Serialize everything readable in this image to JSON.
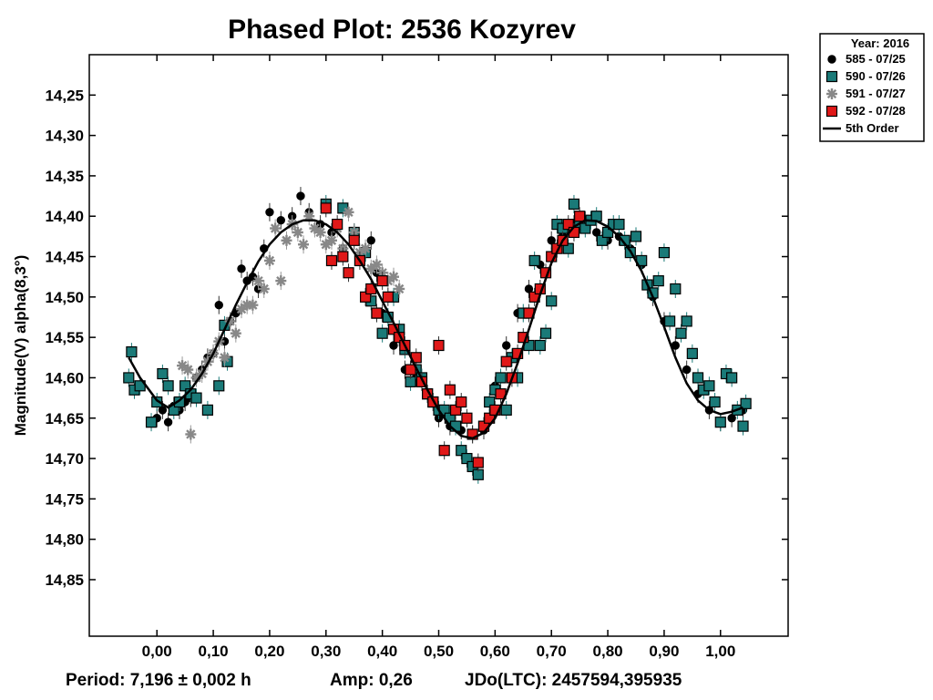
{
  "chart_data": {
    "type": "scatter",
    "title": "Phased Plot: 2536 Kozyrev",
    "xlabel": "",
    "ylabel": "Magnitude(V) alpha(8,3°)",
    "xlim": [
      -0.12,
      1.12
    ],
    "ylim": [
      14.2,
      14.92
    ],
    "y_inverted": true,
    "xticks": [
      0.0,
      0.1,
      0.2,
      0.3,
      0.4,
      0.5,
      0.6,
      0.7,
      0.8,
      0.9,
      1.0
    ],
    "xtick_labels": [
      "0,00",
      "0,10",
      "0,20",
      "0,30",
      "0,40",
      "0,50",
      "0,60",
      "0,70",
      "0,80",
      "0,90",
      "1,00"
    ],
    "yticks": [
      14.25,
      14.3,
      14.35,
      14.4,
      14.45,
      14.5,
      14.55,
      14.6,
      14.65,
      14.7,
      14.75,
      14.8,
      14.85
    ],
    "ytick_labels": [
      "14,25",
      "14,30",
      "14,35",
      "14,40",
      "14,45",
      "14,50",
      "14,55",
      "14,60",
      "14,65",
      "14,70",
      "14,75",
      "14,80",
      "14,85"
    ],
    "legend": {
      "title": "Year: 2016",
      "position": "top-right-outside",
      "entries": [
        "585 - 07/25",
        "590 - 07/26",
        "591 - 07/27",
        "592 - 07/28",
        "5th Order"
      ]
    },
    "footer": {
      "period": "Period: 7,196 ± 0,002 h",
      "amplitude": "Amp: 0,26",
      "jdo": "JDo(LTC): 2457594,395935"
    },
    "fit_curve": {
      "name": "5th Order",
      "x": [
        -0.05,
        -0.03,
        0.0,
        0.02,
        0.04,
        0.06,
        0.08,
        0.1,
        0.12,
        0.14,
        0.16,
        0.18,
        0.2,
        0.22,
        0.24,
        0.26,
        0.28,
        0.3,
        0.32,
        0.34,
        0.36,
        0.38,
        0.4,
        0.42,
        0.44,
        0.46,
        0.48,
        0.5,
        0.52,
        0.54,
        0.56,
        0.58,
        0.6,
        0.62,
        0.64,
        0.66,
        0.68,
        0.7,
        0.72,
        0.74,
        0.76,
        0.78,
        0.8,
        0.82,
        0.84,
        0.86,
        0.88,
        0.9,
        0.92,
        0.94,
        0.96,
        0.98,
        1.0,
        1.02,
        1.04
      ],
      "y": [
        14.575,
        14.6,
        14.628,
        14.637,
        14.628,
        14.615,
        14.595,
        14.57,
        14.54,
        14.51,
        14.482,
        14.456,
        14.435,
        14.42,
        14.41,
        14.405,
        14.405,
        14.41,
        14.42,
        14.435,
        14.455,
        14.478,
        14.505,
        14.532,
        14.56,
        14.588,
        14.615,
        14.64,
        14.66,
        14.672,
        14.675,
        14.668,
        14.65,
        14.62,
        14.582,
        14.54,
        14.497,
        14.458,
        14.43,
        14.413,
        14.405,
        14.406,
        14.413,
        14.425,
        14.443,
        14.468,
        14.5,
        14.537,
        14.575,
        14.607,
        14.628,
        14.64,
        14.645,
        14.642,
        14.637
      ]
    },
    "series": [
      {
        "name": "585 - 07/25",
        "marker": "circle",
        "color": "#000000",
        "x": [
          0.0,
          0.01,
          0.02,
          0.03,
          0.04,
          0.05,
          0.06,
          0.07,
          0.08,
          0.09,
          0.1,
          0.11,
          0.12,
          0.13,
          0.14,
          0.15,
          0.16,
          0.17,
          0.18,
          0.19,
          0.2,
          0.22,
          0.24,
          0.255,
          0.27,
          0.29,
          0.31,
          0.33,
          0.35,
          0.37,
          0.38,
          0.39,
          0.4,
          0.42,
          0.44,
          0.46,
          0.5,
          0.52,
          0.54,
          0.56,
          0.58,
          0.6,
          0.62,
          0.64,
          0.66,
          0.68,
          0.7,
          0.72,
          0.74,
          0.76,
          0.78,
          0.8,
          0.82,
          0.84,
          0.86,
          0.88,
          0.9,
          0.92,
          0.94,
          0.96,
          0.98,
          1.0,
          1.02,
          1.04
        ],
        "y": [
          14.65,
          14.64,
          14.655,
          14.635,
          14.64,
          14.63,
          14.625,
          14.6,
          14.59,
          14.575,
          14.57,
          14.51,
          14.555,
          14.53,
          14.52,
          14.465,
          14.48,
          14.475,
          14.49,
          14.44,
          14.395,
          14.405,
          14.4,
          14.375,
          14.395,
          14.41,
          14.42,
          14.44,
          14.42,
          14.445,
          14.43,
          14.47,
          14.52,
          14.56,
          14.59,
          14.6,
          14.65,
          14.66,
          14.665,
          14.67,
          14.665,
          14.61,
          14.56,
          14.52,
          14.49,
          14.46,
          14.43,
          14.425,
          14.41,
          14.405,
          14.42,
          14.43,
          14.425,
          14.44,
          14.46,
          14.5,
          14.53,
          14.56,
          14.59,
          14.62,
          14.64,
          14.655,
          14.65,
          14.64
        ]
      },
      {
        "name": "590 - 07/26",
        "marker": "square",
        "color": "#1a7a78",
        "x": [
          -0.05,
          -0.045,
          -0.04,
          -0.03,
          -0.01,
          0.0,
          0.01,
          0.02,
          0.03,
          0.04,
          0.05,
          0.06,
          0.07,
          0.09,
          0.11,
          0.12,
          0.125,
          0.3,
          0.33,
          0.35,
          0.37,
          0.38,
          0.39,
          0.4,
          0.41,
          0.42,
          0.43,
          0.44,
          0.45,
          0.46,
          0.47,
          0.48,
          0.49,
          0.5,
          0.51,
          0.52,
          0.53,
          0.54,
          0.55,
          0.56,
          0.57,
          0.58,
          0.59,
          0.6,
          0.61,
          0.62,
          0.63,
          0.64,
          0.65,
          0.66,
          0.67,
          0.68,
          0.69,
          0.7,
          0.71,
          0.72,
          0.73,
          0.74,
          0.75,
          0.76,
          0.77,
          0.78,
          0.79,
          0.8,
          0.81,
          0.82,
          0.83,
          0.84,
          0.85,
          0.86,
          0.87,
          0.88,
          0.89,
          0.9,
          0.91,
          0.92,
          0.93,
          0.94,
          0.95,
          0.96,
          0.97,
          0.98,
          0.99,
          1.0,
          1.01,
          1.02,
          1.03,
          1.04,
          1.045
        ],
        "y": [
          14.6,
          14.568,
          14.615,
          14.61,
          14.655,
          14.63,
          14.595,
          14.61,
          14.64,
          14.63,
          14.61,
          14.62,
          14.625,
          14.64,
          14.61,
          14.535,
          14.58,
          14.385,
          14.39,
          14.42,
          14.445,
          14.505,
          14.52,
          14.545,
          14.525,
          14.5,
          14.54,
          14.565,
          14.605,
          14.59,
          14.6,
          14.62,
          14.63,
          14.64,
          14.64,
          14.65,
          14.66,
          14.69,
          14.7,
          14.71,
          14.72,
          14.66,
          14.63,
          14.615,
          14.6,
          14.64,
          14.575,
          14.6,
          14.52,
          14.56,
          14.455,
          14.56,
          14.545,
          14.505,
          14.41,
          14.415,
          14.44,
          14.385,
          14.41,
          14.415,
          14.405,
          14.4,
          14.43,
          14.42,
          14.41,
          14.41,
          14.43,
          14.445,
          14.425,
          14.455,
          14.485,
          14.495,
          14.48,
          14.445,
          14.53,
          14.49,
          14.545,
          14.53,
          14.57,
          14.6,
          14.615,
          14.61,
          14.63,
          14.655,
          14.595,
          14.6,
          14.64,
          14.66,
          14.632
        ]
      },
      {
        "name": "591 - 07/27",
        "marker": "asterisk",
        "color": "#888888",
        "x": [
          0.045,
          0.055,
          0.06,
          0.07,
          0.08,
          0.09,
          0.1,
          0.11,
          0.12,
          0.13,
          0.14,
          0.15,
          0.16,
          0.17,
          0.18,
          0.19,
          0.2,
          0.21,
          0.22,
          0.23,
          0.24,
          0.25,
          0.26,
          0.27,
          0.28,
          0.29,
          0.3,
          0.31,
          0.32,
          0.33,
          0.34,
          0.35,
          0.36,
          0.37,
          0.38,
          0.39,
          0.4,
          0.41,
          0.42,
          0.43
        ],
        "y": [
          14.585,
          14.59,
          14.67,
          14.6,
          14.595,
          14.58,
          14.57,
          14.555,
          14.575,
          14.53,
          14.545,
          14.515,
          14.51,
          14.51,
          14.48,
          14.49,
          14.455,
          14.415,
          14.48,
          14.43,
          14.41,
          14.42,
          14.435,
          14.4,
          14.415,
          14.42,
          14.435,
          14.43,
          14.415,
          14.44,
          14.395,
          14.42,
          14.445,
          14.44,
          14.465,
          14.46,
          14.47,
          14.48,
          14.475,
          14.49
        ]
      },
      {
        "name": "592 - 07/28",
        "marker": "square",
        "color": "#e01818",
        "x": [
          0.3,
          0.31,
          0.32,
          0.33,
          0.34,
          0.35,
          0.36,
          0.37,
          0.38,
          0.39,
          0.4,
          0.41,
          0.42,
          0.43,
          0.44,
          0.45,
          0.46,
          0.47,
          0.48,
          0.49,
          0.5,
          0.51,
          0.52,
          0.53,
          0.54,
          0.55,
          0.56,
          0.57,
          0.58,
          0.59,
          0.6,
          0.61,
          0.62,
          0.63,
          0.64,
          0.65,
          0.66,
          0.67,
          0.68,
          0.69,
          0.7,
          0.71,
          0.72,
          0.73,
          0.74,
          0.75
        ],
        "y": [
          14.39,
          14.455,
          14.41,
          14.45,
          14.47,
          14.43,
          14.455,
          14.5,
          14.49,
          14.52,
          14.48,
          14.5,
          14.54,
          14.55,
          14.56,
          14.59,
          14.575,
          14.605,
          14.62,
          14.63,
          14.56,
          14.69,
          14.615,
          14.64,
          14.63,
          14.65,
          14.67,
          14.705,
          14.66,
          14.65,
          14.64,
          14.62,
          14.58,
          14.6,
          14.57,
          14.55,
          14.52,
          14.5,
          14.49,
          14.47,
          14.45,
          14.44,
          14.43,
          14.41,
          14.42,
          14.4
        ]
      }
    ]
  }
}
